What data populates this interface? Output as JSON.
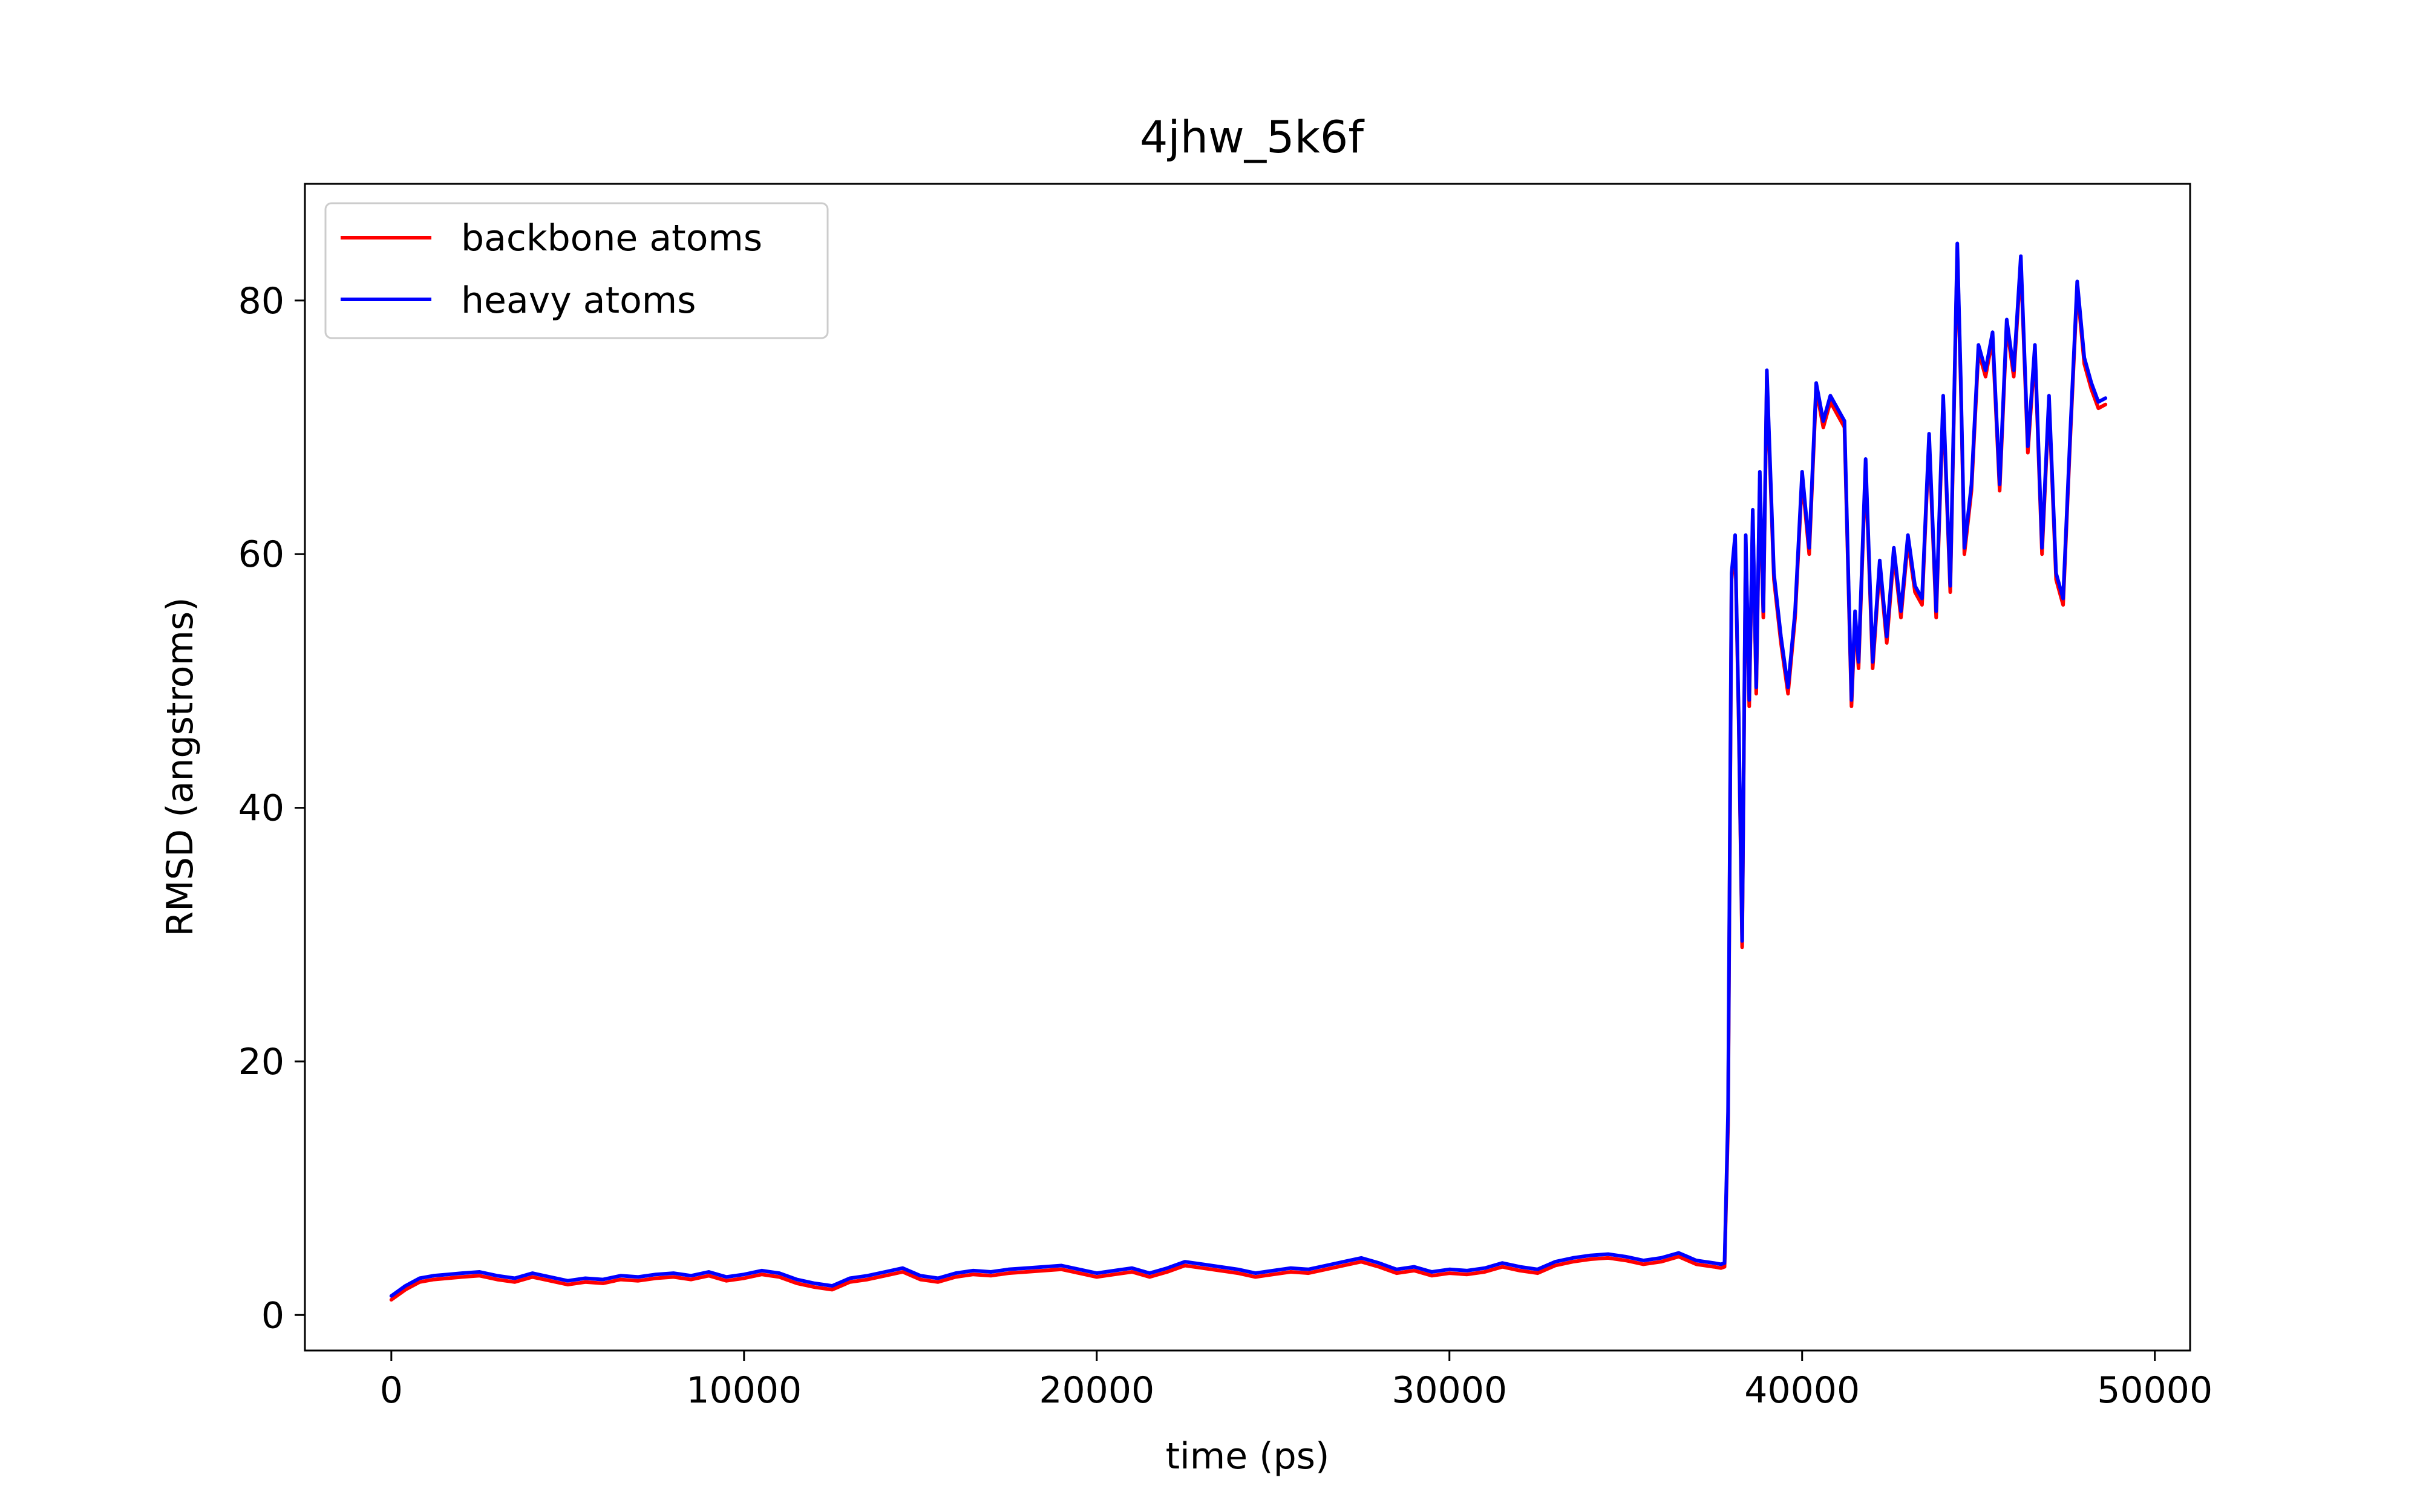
{
  "chart_data": {
    "type": "line",
    "title": "4jhw_5k6f",
    "xlabel": "time (ps)",
    "ylabel": "RMSD (angstroms)",
    "xlim": [
      -2450,
      51000
    ],
    "ylim": [
      -2.8,
      89.2
    ],
    "xticks": [
      0,
      10000,
      20000,
      30000,
      40000,
      50000
    ],
    "yticks": [
      0,
      20,
      40,
      60,
      80
    ],
    "grid": false,
    "legend": {
      "position": "top-left"
    },
    "series": [
      {
        "name": "backbone atoms",
        "color": "#ff0000",
        "x": [
          0,
          400,
          800,
          1200,
          1600,
          2000,
          2500,
          3000,
          3500,
          4000,
          4500,
          5000,
          5500,
          6000,
          6500,
          7000,
          7500,
          8000,
          8500,
          9000,
          9500,
          10000,
          10500,
          11000,
          11500,
          12000,
          12500,
          13000,
          13500,
          14000,
          14500,
          15000,
          15500,
          16000,
          16500,
          17000,
          17500,
          18000,
          18500,
          19000,
          19500,
          20000,
          20500,
          21000,
          21500,
          22000,
          22500,
          23000,
          23500,
          24000,
          24500,
          25000,
          25500,
          26000,
          26500,
          27000,
          27500,
          28000,
          28500,
          29000,
          29500,
          30000,
          30500,
          31000,
          31500,
          32000,
          32500,
          33000,
          33500,
          34000,
          34500,
          35000,
          35500,
          36000,
          36500,
          37000,
          37500,
          37700,
          37800,
          37900,
          38000,
          38100,
          38200,
          38300,
          38400,
          38500,
          38600,
          38700,
          38800,
          38900,
          39000,
          39200,
          39400,
          39600,
          39800,
          40000,
          40200,
          40400,
          40600,
          40800,
          41000,
          41200,
          41400,
          41500,
          41600,
          41800,
          42000,
          42200,
          42400,
          42600,
          42800,
          43000,
          43200,
          43400,
          43600,
          43800,
          44000,
          44200,
          44400,
          44500,
          44600,
          44800,
          45000,
          45200,
          45400,
          45600,
          45800,
          46000,
          46200,
          46400,
          46600,
          46800,
          47000,
          47200,
          47400,
          47600,
          47800,
          48000,
          48200,
          48400,
          48600
        ],
        "y": [
          1.2,
          2.0,
          2.6,
          2.8,
          2.9,
          3.0,
          3.1,
          2.8,
          2.6,
          3.0,
          2.7,
          2.4,
          2.6,
          2.5,
          2.8,
          2.7,
          2.9,
          3.0,
          2.8,
          3.1,
          2.7,
          2.9,
          3.2,
          3.0,
          2.5,
          2.2,
          2.0,
          2.6,
          2.8,
          3.1,
          3.4,
          2.8,
          2.6,
          3.0,
          3.2,
          3.1,
          3.3,
          3.4,
          3.5,
          3.6,
          3.3,
          3.0,
          3.2,
          3.4,
          3.0,
          3.4,
          3.9,
          3.7,
          3.5,
          3.3,
          3.0,
          3.2,
          3.4,
          3.3,
          3.6,
          3.9,
          4.2,
          3.8,
          3.3,
          3.5,
          3.1,
          3.3,
          3.2,
          3.4,
          3.8,
          3.5,
          3.3,
          3.9,
          4.2,
          4.4,
          4.5,
          4.3,
          4.0,
          4.2,
          4.6,
          4.0,
          3.8,
          3.7,
          3.8,
          15.0,
          58.0,
          61.0,
          47.0,
          29.0,
          61.0,
          48.0,
          63.0,
          49.0,
          66.0,
          55.0,
          74.0,
          58.0,
          53.0,
          49.0,
          55.0,
          66.0,
          60.0,
          73.0,
          70.0,
          72.0,
          71.0,
          70.0,
          48.0,
          55.0,
          51.0,
          67.0,
          51.0,
          59.0,
          53.0,
          60.0,
          55.0,
          61.0,
          57.0,
          56.0,
          69.0,
          55.0,
          72.0,
          57.0,
          84.0,
          73.0,
          60.0,
          65.0,
          76.0,
          74.0,
          77.0,
          65.0,
          78.0,
          74.0,
          83.0,
          68.0,
          76.0,
          60.0,
          72.0,
          58.0,
          56.0,
          69.0,
          81.0,
          75.0,
          73.0,
          71.5,
          71.8
        ]
      },
      {
        "name": "heavy atoms",
        "color": "#0000ff",
        "x": [
          0,
          400,
          800,
          1200,
          1600,
          2000,
          2500,
          3000,
          3500,
          4000,
          4500,
          5000,
          5500,
          6000,
          6500,
          7000,
          7500,
          8000,
          8500,
          9000,
          9500,
          10000,
          10500,
          11000,
          11500,
          12000,
          12500,
          13000,
          13500,
          14000,
          14500,
          15000,
          15500,
          16000,
          16500,
          17000,
          17500,
          18000,
          18500,
          19000,
          19500,
          20000,
          20500,
          21000,
          21500,
          22000,
          22500,
          23000,
          23500,
          24000,
          24500,
          25000,
          25500,
          26000,
          26500,
          27000,
          27500,
          28000,
          28500,
          29000,
          29500,
          30000,
          30500,
          31000,
          31500,
          32000,
          32500,
          33000,
          33500,
          34000,
          34500,
          35000,
          35500,
          36000,
          36500,
          37000,
          37500,
          37700,
          37800,
          37900,
          38000,
          38100,
          38200,
          38300,
          38400,
          38500,
          38600,
          38700,
          38800,
          38900,
          39000,
          39200,
          39400,
          39600,
          39800,
          40000,
          40200,
          40400,
          40600,
          40800,
          41000,
          41200,
          41400,
          41500,
          41600,
          41800,
          42000,
          42200,
          42400,
          42600,
          42800,
          43000,
          43200,
          43400,
          43600,
          43800,
          44000,
          44200,
          44400,
          44500,
          44600,
          44800,
          45000,
          45200,
          45400,
          45600,
          45800,
          46000,
          46200,
          46400,
          46600,
          46800,
          47000,
          47200,
          47400,
          47600,
          47800,
          48000,
          48200,
          48400,
          48600
        ],
        "y": [
          1.5,
          2.3,
          2.9,
          3.1,
          3.2,
          3.3,
          3.4,
          3.1,
          2.9,
          3.3,
          3.0,
          2.7,
          2.9,
          2.8,
          3.1,
          3.0,
          3.2,
          3.3,
          3.1,
          3.4,
          3.0,
          3.2,
          3.5,
          3.3,
          2.8,
          2.5,
          2.3,
          2.9,
          3.1,
          3.4,
          3.7,
          3.1,
          2.9,
          3.3,
          3.5,
          3.4,
          3.6,
          3.7,
          3.8,
          3.9,
          3.6,
          3.3,
          3.5,
          3.7,
          3.3,
          3.7,
          4.2,
          4.0,
          3.8,
          3.6,
          3.3,
          3.5,
          3.7,
          3.6,
          3.9,
          4.2,
          4.5,
          4.1,
          3.6,
          3.8,
          3.4,
          3.6,
          3.5,
          3.7,
          4.1,
          3.8,
          3.6,
          4.2,
          4.5,
          4.7,
          4.8,
          4.6,
          4.3,
          4.5,
          4.9,
          4.3,
          4.1,
          4.0,
          4.1,
          16.0,
          58.5,
          61.5,
          47.5,
          29.5,
          61.5,
          48.5,
          63.5,
          49.5,
          66.5,
          55.5,
          74.5,
          58.5,
          53.5,
          49.5,
          55.5,
          66.5,
          60.5,
          73.5,
          70.5,
          72.5,
          71.5,
          70.5,
          48.5,
          55.5,
          51.5,
          67.5,
          51.5,
          59.5,
          53.5,
          60.5,
          55.5,
          61.5,
          57.5,
          56.5,
          69.5,
          55.5,
          72.5,
          57.5,
          84.5,
          73.5,
          60.5,
          65.5,
          76.5,
          74.5,
          77.5,
          65.5,
          78.5,
          74.5,
          83.5,
          68.5,
          76.5,
          60.5,
          72.5,
          58.5,
          56.5,
          69.5,
          81.5,
          75.5,
          73.5,
          72.0,
          72.3
        ]
      }
    ]
  }
}
